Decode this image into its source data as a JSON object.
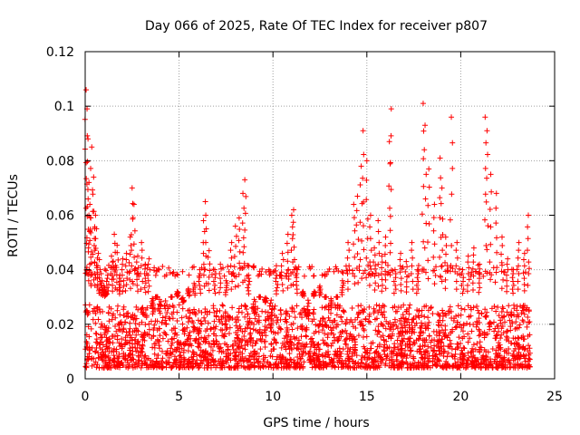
{
  "chart_data": {
    "type": "scatter",
    "title": "Day 066 of 2025, Rate Of TEC Index for receiver p807",
    "xlabel": "GPS time / hours",
    "ylabel": "ROTI / TECUs",
    "xlim": [
      0,
      25
    ],
    "ylim": [
      0,
      0.12
    ],
    "x_ticks": [
      0,
      5,
      10,
      15,
      20,
      25
    ],
    "x_tick_labels": [
      "0",
      "5",
      "10",
      "15",
      "20",
      "25"
    ],
    "y_ticks": [
      0,
      0.02,
      0.04,
      0.06,
      0.08,
      0.1,
      0.12
    ],
    "y_tick_labels": [
      "0",
      "0.02",
      "0.04",
      "0.06",
      "0.08",
      "0.1",
      "0.12"
    ],
    "grid": true,
    "marker": "+",
    "series": [
      {
        "name": "ROTI",
        "color": "#ff0000",
        "x": [
          0.05,
          0.1,
          0.15,
          0.2,
          0.25,
          0.3,
          0.35,
          0.45,
          0.55,
          0.6,
          0.7,
          0.8,
          0.9,
          1.0,
          1.1,
          1.2,
          1.4,
          1.55,
          1.7,
          1.85,
          2.0,
          2.2,
          2.4,
          2.5,
          2.6,
          2.8,
          3.0,
          3.2,
          3.4,
          3.6,
          3.8,
          4.0,
          4.3,
          4.6,
          4.9,
          5.2,
          5.5,
          5.8,
          6.1,
          6.3,
          6.4,
          6.6,
          6.9,
          7.2,
          7.5,
          7.8,
          8.0,
          8.2,
          8.4,
          8.5,
          8.7,
          9.0,
          9.3,
          9.6,
          9.9,
          10.2,
          10.5,
          10.8,
          11.0,
          11.1,
          11.3,
          11.6,
          11.9,
          12.2,
          12.5,
          12.8,
          13.1,
          13.4,
          13.7,
          14.0,
          14.3,
          14.5,
          14.7,
          14.8,
          15.0,
          15.2,
          15.4,
          15.6,
          15.8,
          16.0,
          16.2,
          16.3,
          16.5,
          16.8,
          17.1,
          17.4,
          17.7,
          18.0,
          18.1,
          18.3,
          18.6,
          18.9,
          19.0,
          19.2,
          19.5,
          19.8,
          20.1,
          20.4,
          20.7,
          21.0,
          21.3,
          21.4,
          21.6,
          21.9,
          22.2,
          22.5,
          22.8,
          23.1,
          23.4,
          23.6
        ],
        "y": [
          0.106,
          0.099,
          0.088,
          0.072,
          0.064,
          0.059,
          0.085,
          0.074,
          0.06,
          0.055,
          0.046,
          0.04,
          0.036,
          0.034,
          0.032,
          0.038,
          0.045,
          0.053,
          0.049,
          0.038,
          0.044,
          0.046,
          0.052,
          0.07,
          0.064,
          0.045,
          0.05,
          0.042,
          0.044,
          0.026,
          0.03,
          0.024,
          0.02,
          0.03,
          0.032,
          0.028,
          0.033,
          0.035,
          0.04,
          0.058,
          0.065,
          0.047,
          0.04,
          0.042,
          0.036,
          0.05,
          0.056,
          0.059,
          0.068,
          0.073,
          0.038,
          0.024,
          0.03,
          0.028,
          0.022,
          0.038,
          0.046,
          0.053,
          0.06,
          0.062,
          0.04,
          0.032,
          0.022,
          0.032,
          0.034,
          0.03,
          0.026,
          0.03,
          0.036,
          0.05,
          0.064,
          0.067,
          0.078,
          0.091,
          0.08,
          0.06,
          0.048,
          0.058,
          0.045,
          0.052,
          0.087,
          0.099,
          0.04,
          0.046,
          0.043,
          0.05,
          0.04,
          0.101,
          0.093,
          0.077,
          0.064,
          0.081,
          0.07,
          0.052,
          0.096,
          0.05,
          0.04,
          0.045,
          0.048,
          0.042,
          0.096,
          0.091,
          0.075,
          0.068,
          0.052,
          0.044,
          0.04,
          0.05,
          0.046,
          0.06
        ]
      }
    ],
    "dense_band": {
      "description": "dense cloud of '+' markers between these ROTI bounds (TECUs) across 0 - 23.7 h",
      "lower": 0.004,
      "upper": 0.03
    }
  }
}
